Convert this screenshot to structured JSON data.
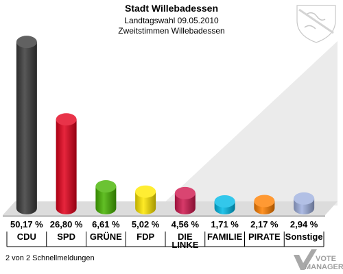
{
  "header": {
    "title": "Stadt Willebadessen",
    "subtitle": "Landtagswahl 09.05.2010",
    "subtitle2": "Zweitstimmen Willebadessen"
  },
  "footer": {
    "text": "2 von 2 Schnellmeldungen"
  },
  "watermark": {
    "line1": "VOTE",
    "line2": "MANAGER"
  },
  "chart_data": {
    "type": "bar",
    "title": "Stadt Willebadessen",
    "ylim": [
      0,
      52
    ],
    "categories": [
      "CDU",
      "SPD",
      "GRÜNE",
      "FDP",
      "DIE LINKE",
      "FAMILIE",
      "PIRATE",
      "Sonstige"
    ],
    "category_lines": [
      [
        "CDU"
      ],
      [
        "SPD"
      ],
      [
        "GRÜNE"
      ],
      [
        "FDP"
      ],
      [
        "DIE",
        "LINKE"
      ],
      [
        "FAMILIE"
      ],
      [
        "PIRATE"
      ],
      [
        "Sonstige"
      ]
    ],
    "values": [
      50.17,
      26.8,
      6.61,
      5.02,
      4.56,
      1.71,
      2.17,
      2.94
    ],
    "labels": [
      "50,17 %",
      "26,80 %",
      "6,61 %",
      "5,02 %",
      "4,56 %",
      "1,71 %",
      "2,17 %",
      "2,94 %"
    ],
    "colors": [
      "#3a3a3a",
      "#e3001b",
      "#46b400",
      "#ffe800",
      "#d0174e",
      "#00b9e6",
      "#ff8000",
      "#9fb0df"
    ]
  }
}
